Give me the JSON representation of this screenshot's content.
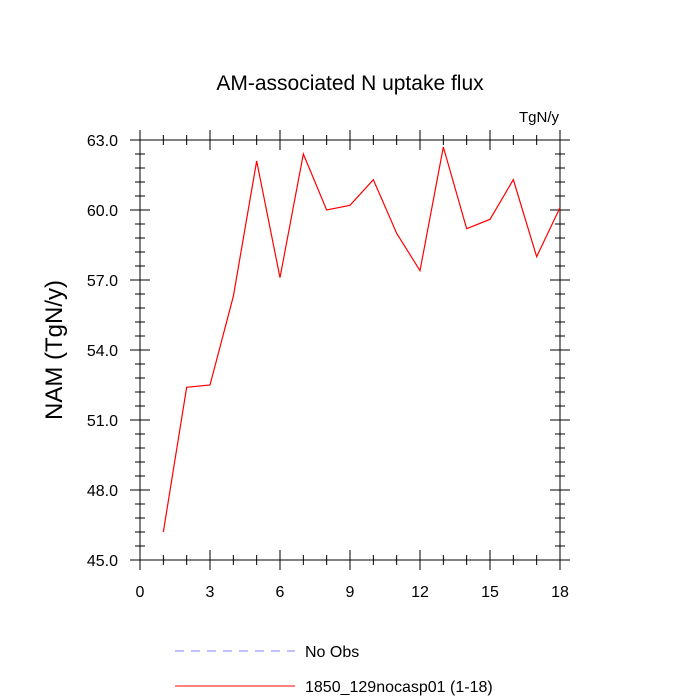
{
  "chart_data": {
    "type": "line",
    "title": "AM-associated N uptake flux",
    "units": "TgN/y",
    "xlabel": "",
    "ylabel": "NAM  (TgN/y)",
    "xlim": [
      0,
      18
    ],
    "ylim": [
      45.0,
      63.0
    ],
    "x_ticks": [
      0,
      3,
      6,
      9,
      12,
      15,
      18
    ],
    "x_tick_labels": [
      "0",
      "3",
      "6",
      "9",
      "12",
      "15",
      "18"
    ],
    "y_ticks": [
      45.0,
      48.0,
      51.0,
      54.0,
      57.0,
      60.0,
      63.0
    ],
    "y_tick_labels": [
      "45.0",
      "48.0",
      "51.0",
      "54.0",
      "57.0",
      "60.0",
      "63.0"
    ],
    "grid": false,
    "legend_position": "bottom",
    "series": [
      {
        "name": "No Obs",
        "color": "#8080ff",
        "style": "dashed",
        "x": [],
        "values": []
      },
      {
        "name": "1850_129nocasp01 (1-18)",
        "color": "#ff0000",
        "style": "solid",
        "x": [
          1,
          2,
          3,
          4,
          5,
          6,
          7,
          8,
          9,
          10,
          11,
          12,
          13,
          14,
          15,
          16,
          17,
          18
        ],
        "values": [
          46.2,
          52.4,
          52.5,
          56.3,
          62.1,
          57.1,
          62.4,
          60.0,
          60.2,
          61.3,
          59.0,
          57.4,
          62.7,
          59.2,
          59.6,
          61.3,
          58.0,
          60.1
        ]
      }
    ]
  }
}
